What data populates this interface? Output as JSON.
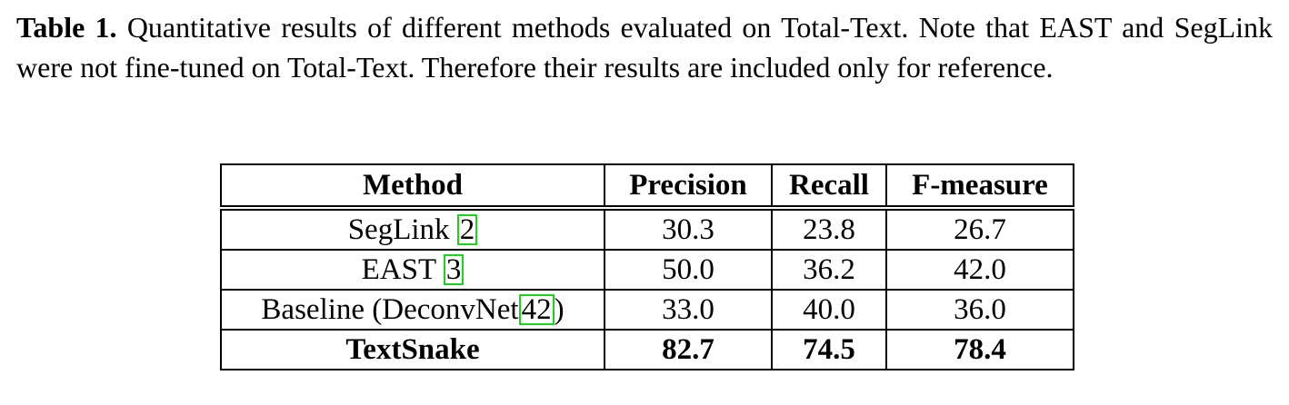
{
  "caption": {
    "label": "Table 1.",
    "text": " Quantitative results of different methods evaluated on Total-Text. Note that EAST and SegLink were not fine-tuned on Total-Text. Therefore their results are included only for reference."
  },
  "table": {
    "headers": [
      "Method",
      "Precision",
      "Recall",
      "F-measure"
    ],
    "rows": [
      {
        "method": "SegLink ",
        "ref": "2",
        "suffix": "",
        "precision": "30.3",
        "recall": "23.8",
        "fmeasure": "26.7"
      },
      {
        "method": "EAST ",
        "ref": "3",
        "suffix": "",
        "precision": "50.0",
        "recall": "36.2",
        "fmeasure": "42.0"
      },
      {
        "method": "Baseline (DeconvNet",
        "ref": "42",
        "suffix": ")",
        "precision": "33.0",
        "recall": "40.0",
        "fmeasure": "36.0"
      },
      {
        "method": "TextSnake",
        "precision": "82.7",
        "recall": "74.5",
        "fmeasure": "78.4"
      }
    ]
  },
  "colors": {
    "ref_box": "#1dd21d"
  }
}
